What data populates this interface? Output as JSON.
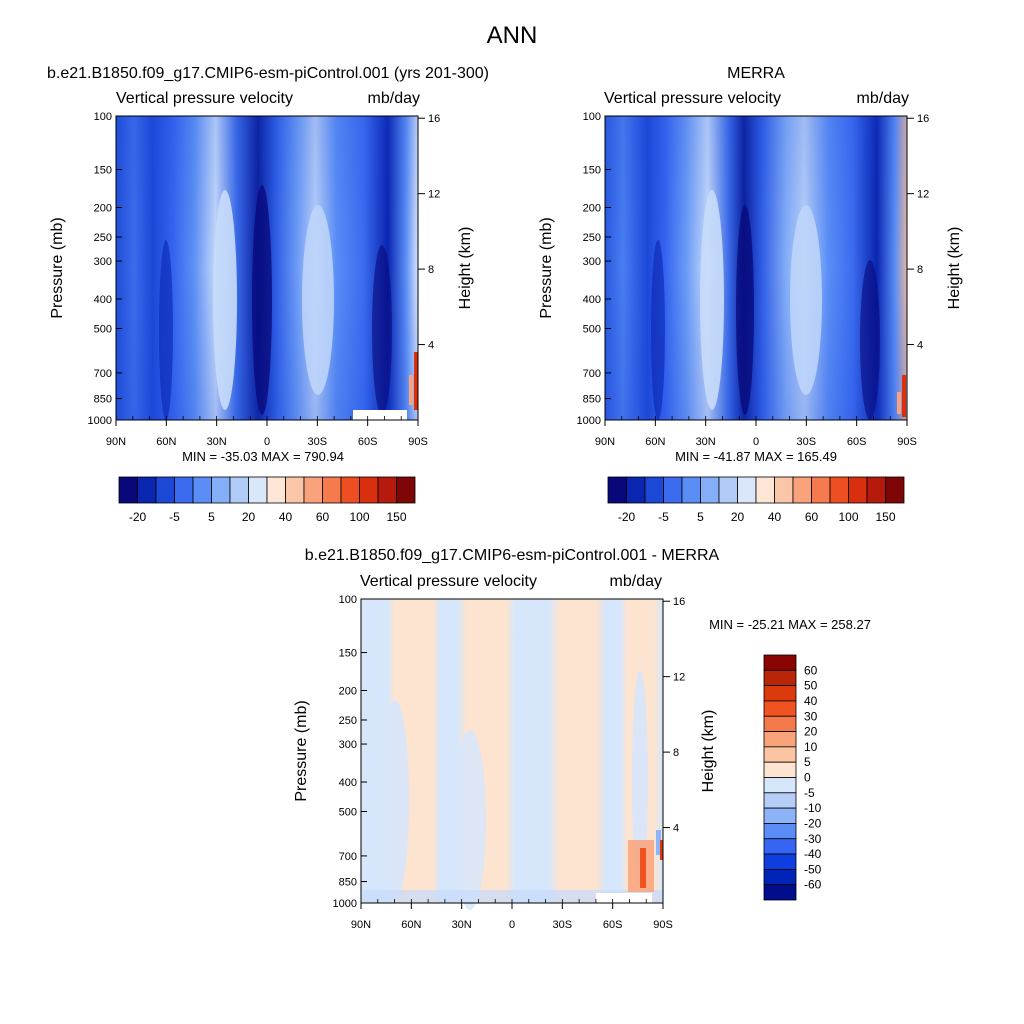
{
  "page": {
    "title": "ANN"
  },
  "panels": [
    {
      "id": "model",
      "heading": "b.e21.B1850.f09_g17.CMIP6-esm-piControl.001 (yrs 201-300)",
      "left_label": "Vertical pressure velocity",
      "right_label": "mb/day",
      "ylabel": "Pressure (mb)",
      "y2label": "Height (km)",
      "stats": "MIN = -35.03  MAX = 790.94"
    },
    {
      "id": "obs",
      "heading": "MERRA",
      "left_label": "Vertical pressure velocity",
      "right_label": "mb/day",
      "ylabel": "Pressure (mb)",
      "y2label": "Height (km)",
      "stats": "MIN = -41.87  MAX = 165.49"
    },
    {
      "id": "diff",
      "heading": "b.e21.B1850.f09_g17.CMIP6-esm-piControl.001 - MERRA",
      "left_label": "Vertical pressure velocity",
      "right_label": "mb/day",
      "ylabel": "Pressure (mb)",
      "y2label": "Height (km)",
      "stats": "MIN = -25.21  MAX = 258.27"
    }
  ],
  "chart_data": {
    "type": "heatmap",
    "x_ticks": [
      "90N",
      "60N",
      "30N",
      "0",
      "30S",
      "60S",
      "90S"
    ],
    "y_pressure_ticks": [
      100,
      150,
      200,
      250,
      300,
      400,
      500,
      700,
      850,
      1000
    ],
    "y_pressure_range": [
      100,
      1000
    ],
    "y_height_ticks": [
      4,
      8,
      12,
      16
    ],
    "colors": {
      "abs_scale": [
        "#08087a",
        "#0a25b0",
        "#1c48d8",
        "#3b6cf0",
        "#5a8ef6",
        "#84aef8",
        "#b0cbf6",
        "#dae7fb",
        "#fde6d6",
        "#fbc6a8",
        "#f9a27c",
        "#f57a4e",
        "#ee4f22",
        "#d8300f",
        "#b51a0c",
        "#7e0606"
      ],
      "abs_labels": [
        "-20",
        "-5",
        "5",
        "20",
        "40",
        "60",
        "100",
        "150"
      ],
      "diff_scale": [
        "#000d8c",
        "#0124b8",
        "#0f3ee0",
        "#3565f5",
        "#5a8ef6",
        "#8cb4f7",
        "#b6cef7",
        "#d6e6fb",
        "#fde4d0",
        "#fbc4a2",
        "#f9a37a",
        "#f57a4b",
        "#ef5420",
        "#db3a0c",
        "#b82508",
        "#8a0404"
      ],
      "diff_labels": [
        "60",
        "50",
        "40",
        "30",
        "20",
        "10",
        "5",
        "0",
        "-5",
        "-10",
        "-20",
        "-30",
        "-40",
        "-50",
        "-60"
      ]
    }
  }
}
